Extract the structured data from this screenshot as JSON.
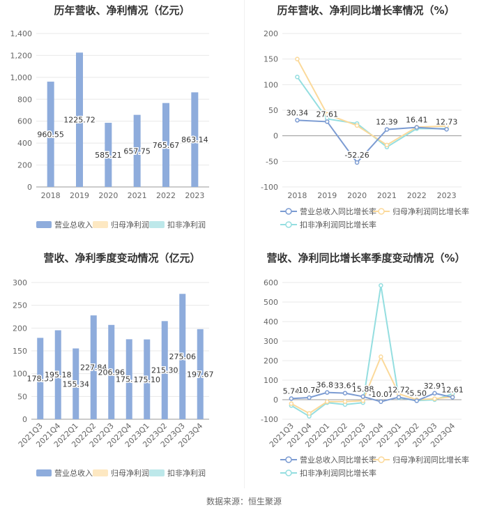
{
  "source": "数据来源：恒生聚源",
  "colors": {
    "revenue": "#8eacdc",
    "netprofit": "#fde8c2",
    "deducted": "#bde8ea",
    "line_rev": "#7b9bd2",
    "line_np": "#fbd99a",
    "line_dd": "#94dee0"
  },
  "chart_data": [
    {
      "type": "bar",
      "title": "历年营收、净利情况（亿元）",
      "categories": [
        "2018",
        "2019",
        "2020",
        "2021",
        "2022",
        "2023"
      ],
      "series": [
        {
          "name": "营业总收入",
          "values": [
            960.55,
            1225.72,
            585.21,
            657.75,
            765.67,
            863.14
          ]
        },
        {
          "name": "归母净利润",
          "values": [
            null,
            null,
            null,
            null,
            null,
            null
          ]
        },
        {
          "name": "扣非净利润",
          "values": [
            null,
            null,
            null,
            null,
            null,
            null
          ]
        }
      ],
      "labels": [
        "960.55",
        "1225.72",
        "585.21",
        "657.75",
        "765.67",
        "863.14"
      ],
      "yticks": [
        "0",
        "200",
        "400",
        "600",
        "800",
        "1,000",
        "1,200",
        "1,400"
      ],
      "ylim": [
        0,
        1400
      ],
      "legend": [
        "营业总收入",
        "归母净利润",
        "扣非净利润"
      ]
    },
    {
      "type": "line",
      "title": "历年营收、净利同比增长率情况（%）",
      "categories": [
        "2018",
        "2019",
        "2020",
        "2021",
        "2022",
        "2023"
      ],
      "series": [
        {
          "name": "营业总收入同比增长率",
          "values": [
            30.34,
            27.61,
            -52.26,
            12.39,
            16.41,
            12.73
          ]
        },
        {
          "name": "归母净利润同比增长率",
          "values": [
            150,
            42,
            20,
            -18,
            17,
            19
          ]
        },
        {
          "name": "扣非净利润同比增长率",
          "values": [
            115,
            33,
            24,
            -22,
            14,
            14
          ]
        }
      ],
      "labels": [
        "30.34",
        "27.61",
        "-52.26",
        "12.39",
        "16.41",
        "12.73"
      ],
      "yticks": [
        "200",
        "150",
        "100",
        "50",
        "0",
        "-50",
        "-100"
      ],
      "ylim": [
        -100,
        200
      ],
      "legend": [
        "营业总收入同比增长率",
        "归母净利润同比增长率",
        "扣非净利润同比增长率"
      ]
    },
    {
      "type": "bar",
      "title": "营收、净利季度变动情况（亿元）",
      "categories": [
        "2021Q3",
        "2021Q4",
        "2022Q1",
        "2022Q2",
        "2022Q3",
        "2022Q4",
        "2023Q1",
        "2023Q2",
        "2023Q3",
        "2023Q4"
      ],
      "series": [
        {
          "name": "营业总收入",
          "values": [
            178.55,
            195.18,
            155.34,
            227.84,
            206.96,
            175.51,
            175.1,
            215.3,
            275.06,
            197.67
          ]
        },
        {
          "name": "归母净利润",
          "values": [
            null,
            null,
            null,
            null,
            null,
            null,
            null,
            null,
            null,
            null
          ]
        },
        {
          "name": "扣非净利润",
          "values": [
            null,
            null,
            null,
            null,
            null,
            null,
            null,
            null,
            null,
            null
          ]
        }
      ],
      "labels": [
        "178.55",
        "195.18",
        "155.34",
        "227.84",
        "206.96",
        "175.51",
        "175.10",
        "215.30",
        "275.06",
        "197.67"
      ],
      "yticks": [
        "0",
        "50",
        "100",
        "150",
        "200",
        "250",
        "300"
      ],
      "ylim": [
        0,
        300
      ],
      "legend": [
        "营业总收入",
        "归母净利润",
        "扣非净利润"
      ]
    },
    {
      "type": "line",
      "title": "营收、净利同比增长率季度变动情况（%）",
      "categories": [
        "2021Q3",
        "2021Q4",
        "2022Q1",
        "2022Q2",
        "2022Q3",
        "2022Q4",
        "2023Q1",
        "2023Q2",
        "2023Q3",
        "2023Q4"
      ],
      "series": [
        {
          "name": "营业总收入同比增长率",
          "values": [
            5.74,
            10.76,
            36.89,
            33.64,
            15.88,
            -10.07,
            12.72,
            -5.5,
            32.91,
            12.61
          ]
        },
        {
          "name": "归母净利润同比增长率",
          "values": [
            -20,
            -70,
            -10,
            -10,
            -5,
            220,
            30,
            0,
            5,
            15
          ]
        },
        {
          "name": "扣非净利润同比增长率",
          "values": [
            -30,
            -85,
            -15,
            -25,
            -15,
            585,
            10,
            -5,
            0,
            30
          ]
        }
      ],
      "labels": [
        "5.74",
        "10.76",
        "36.89",
        "33.64",
        "15.88",
        "-10.07",
        "12.72",
        "-5.50",
        "32.91",
        "12.61"
      ],
      "yticks": [
        "600",
        "500",
        "400",
        "300",
        "200",
        "100",
        "0",
        "-100"
      ],
      "ylim": [
        -100,
        600
      ],
      "legend": [
        "营业总收入同比增长率",
        "归母净利润同比增长率",
        "扣非净利润同比增长率"
      ]
    }
  ]
}
